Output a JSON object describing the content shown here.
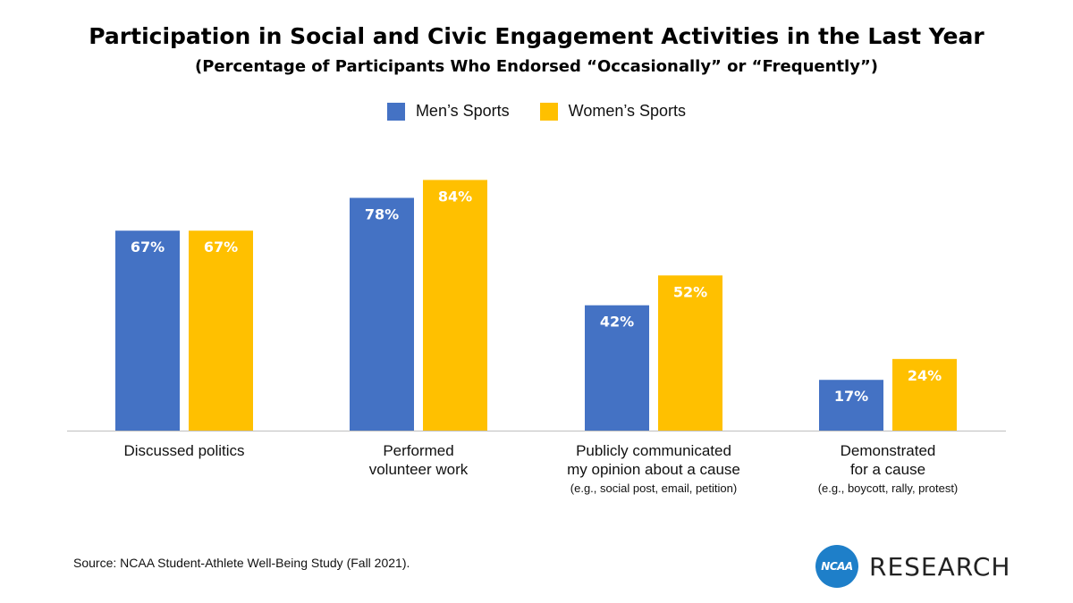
{
  "chart_data": {
    "type": "bar",
    "title": "Participation in Social and Civic Engagement Activities in the Last Year",
    "subtitle": "(Percentage of Participants Who Endorsed “Occasionally” or “Frequently”)",
    "categories": [
      {
        "lines": [
          "Discussed politics"
        ],
        "note": ""
      },
      {
        "lines": [
          "Performed",
          "volunteer work"
        ],
        "note": ""
      },
      {
        "lines": [
          "Publicly communicated",
          "my opinion about a cause"
        ],
        "note": "(e.g., social post, email, petition)"
      },
      {
        "lines": [
          "Demonstrated",
          "for a cause"
        ],
        "note": "(e.g., boycott, rally, protest)"
      }
    ],
    "series": [
      {
        "name": "Men’s Sports",
        "color": "#4472c4",
        "values": [
          67,
          78,
          42,
          17
        ],
        "labels": [
          "67%",
          "78%",
          "42%",
          "17%"
        ]
      },
      {
        "name": "Women’s Sports",
        "color": "#ffc000",
        "values": [
          67,
          84,
          52,
          24
        ],
        "labels": [
          "67%",
          "84%",
          "52%",
          "24%"
        ]
      }
    ],
    "ylim": [
      0,
      100
    ],
    "grid": false,
    "legend_position": "top-center"
  },
  "footer": {
    "source": "Source: NCAA Student-Athlete Well-Being Study (Fall 2021).",
    "logo_badge": "NCAA",
    "logo_text": "RESEARCH"
  }
}
